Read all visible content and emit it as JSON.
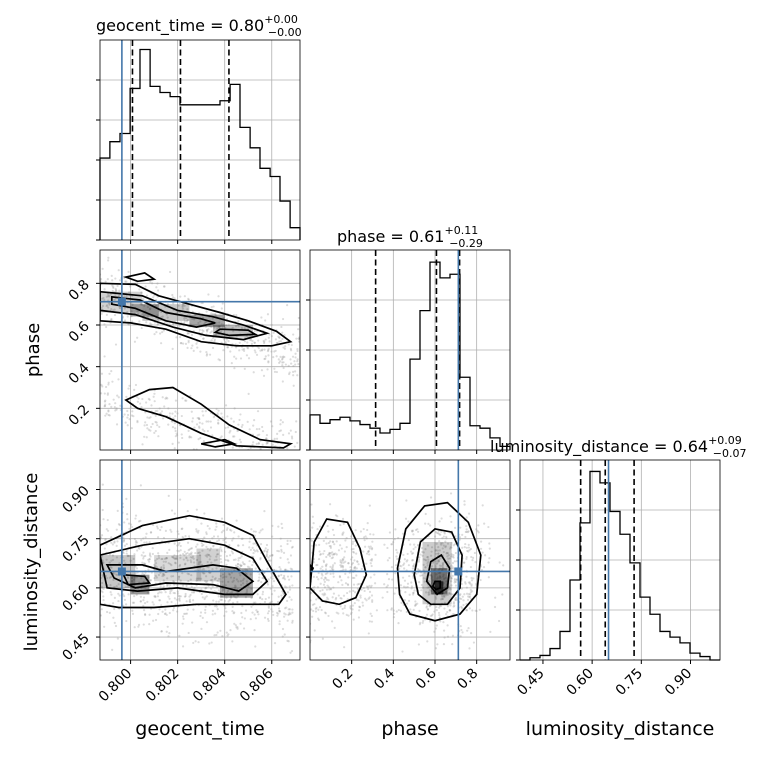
{
  "chart_data": {
    "type": "corner",
    "parameters": [
      "geocent_time",
      "phase",
      "luminosity_distance"
    ],
    "titles": {
      "geocent_time": {
        "name": "geocent_time",
        "median": "0.80",
        "plus": "+0.00",
        "minus": "−0.00"
      },
      "phase": {
        "name": "phase",
        "median": "0.61",
        "plus": "+0.11",
        "minus": "−0.29"
      },
      "luminosity_distance": {
        "name": "luminosity_distance",
        "median": "0.64",
        "plus": "+0.09",
        "minus": "−0.07"
      }
    },
    "axes": {
      "geocent_time": {
        "range": [
          0.7987,
          0.8072
        ],
        "ticks": [
          0.8,
          0.802,
          0.804,
          0.806
        ],
        "ticklabels": [
          "0.800",
          "0.802",
          "0.804",
          "0.806"
        ]
      },
      "phase": {
        "range": [
          0.0,
          0.96
        ],
        "ticks": [
          0.2,
          0.4,
          0.6,
          0.8
        ],
        "ticklabels": [
          "0.2",
          "0.4",
          "0.6",
          "0.8"
        ]
      },
      "luminosity_distance": {
        "range": [
          0.38,
          0.99
        ],
        "ticks": [
          0.45,
          0.6,
          0.75,
          0.9
        ],
        "ticklabels": [
          "0.45",
          "0.60",
          "0.75",
          "0.90"
        ]
      }
    },
    "truths": {
      "geocent_time": 0.79963,
      "phase": 0.712,
      "luminosity_distance": 0.65
    },
    "quantile_lines": {
      "geocent_time": [
        0.80008,
        0.80212,
        0.80418
      ],
      "phase": [
        0.315,
        0.607,
        0.718
      ],
      "luminosity_distance": [
        0.565,
        0.64,
        0.728
      ]
    },
    "histograms": {
      "geocent_time": {
        "edges": [
          0.7987,
          0.79912,
          0.79955,
          0.79998,
          0.8004,
          0.80083,
          0.80125,
          0.80168,
          0.8021,
          0.80253,
          0.80295,
          0.80338,
          0.8038,
          0.80423,
          0.80465,
          0.80508,
          0.8055,
          0.80593,
          0.80635,
          0.80678,
          0.8072
        ],
        "counts": [
          40,
          48,
          52,
          74,
          93,
          75,
          72,
          70,
          66,
          66,
          66,
          66,
          68,
          76,
          55,
          45,
          35,
          31,
          19,
          6
        ]
      },
      "phase": {
        "edges": [
          0.0,
          0.048,
          0.096,
          0.144,
          0.192,
          0.24,
          0.288,
          0.336,
          0.384,
          0.432,
          0.48,
          0.528,
          0.576,
          0.624,
          0.672,
          0.72,
          0.768,
          0.816,
          0.864,
          0.912,
          0.96
        ],
        "counts": [
          29,
          22,
          25,
          27,
          24,
          21,
          18,
          14,
          17,
          22,
          75,
          115,
          155,
          142,
          145,
          60,
          20,
          18,
          10,
          3
        ],
        "ylim": [
          0,
          165
        ]
      },
      "luminosity_distance": {
        "edges": [
          0.38,
          0.4105,
          0.441,
          0.4715,
          0.502,
          0.5325,
          0.563,
          0.5935,
          0.624,
          0.6545,
          0.685,
          0.7155,
          0.746,
          0.7765,
          0.807,
          0.8375,
          0.868,
          0.8985,
          0.929,
          0.9595,
          0.99
        ],
        "counts": [
          0,
          2,
          4,
          10,
          25,
          70,
          120,
          165,
          155,
          130,
          110,
          85,
          55,
          40,
          25,
          20,
          15,
          6,
          3,
          0
        ],
        "ylim": [
          0,
          175
        ]
      }
    },
    "xlabels": [
      "geocent_time",
      "phase",
      "luminosity_distance"
    ],
    "ylabels": [
      "phase",
      "luminosity_distance"
    ],
    "grid": true,
    "colors": {
      "truth": "#4477aa",
      "lines": "#000000",
      "scatter": "#9a9a9a"
    }
  }
}
